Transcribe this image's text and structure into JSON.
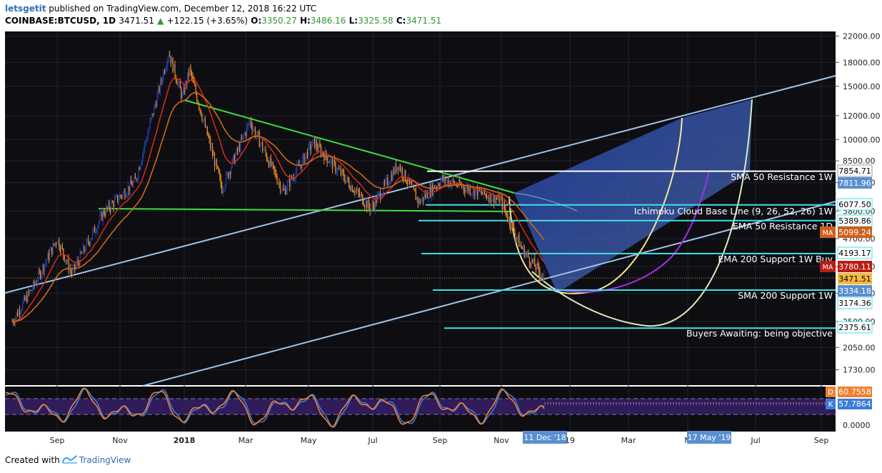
{
  "header": {
    "user": "letsgetit",
    "published_text": "published on TradingView.com, December 12, 2018 16:22 UTC",
    "symbol": "COINBASE:BTCUSD, 1D",
    "last": "3471.51",
    "change_arrow": "▲",
    "change": "+122.15 (+3.65%)",
    "o_label": "O:",
    "o_value": "3350.27",
    "h_label": "H:",
    "h_value": "3486.16",
    "l_label": "L:",
    "l_value": "3325.58",
    "c_label": "C:",
    "c_value": "3471.51"
  },
  "footer": {
    "created_with": "Created with",
    "brand": "TradingView",
    "logo_icon": "tradingview-logo-icon"
  },
  "colors": {
    "candle_up": "#1e3fa8",
    "candle_down": "#f08c1e",
    "resistance_green": "#3de03d",
    "channel_blue": "#9fc3ea",
    "level_cyan": "#3fe0e8",
    "white_level": "#ffffff",
    "arc_yellow": "#f5e79a",
    "arc_purple": "#a22ee8",
    "arc_pale": "#d9ecc0",
    "stoch_d": "#f08030",
    "stoch_k": "#3b7dd8",
    "ema_red": "#cc2a1a",
    "ema_orange": "#cc6a1a"
  },
  "chart_data": {
    "type": "candlestick",
    "symbol": "COINBASE:BTCUSD",
    "interval": "1D",
    "y_scale": "log",
    "y_axis_ticks": [
      "22000.00",
      "18000.00",
      "15000.00",
      "12000.00",
      "10000.00",
      "8500.00",
      "7200.00",
      "5800.00",
      "4700.00",
      "3800.00",
      "3100.00",
      "2500.00",
      "2050.00",
      "1730.00"
    ],
    "x_axis_ticks": [
      "Sep",
      "Nov",
      "2018",
      "Mar",
      "May",
      "Jul",
      "Sep",
      "Nov",
      "19",
      "Mar",
      "M",
      "Jul",
      "Sep"
    ],
    "x_axis_date_badges": [
      "11 Dec '18",
      "17 May '19"
    ],
    "price_markers": [
      {
        "value": "7854.71",
        "bg": "#ffffff",
        "fg": "#000000",
        "border": "#999999"
      },
      {
        "value": "7811.96",
        "bg": "#5a8fd0",
        "fg": "#ffffff"
      },
      {
        "value": "6077.50",
        "bg": "#ffffff",
        "fg": "#000000",
        "border": "#3fe0e8"
      },
      {
        "value": "5389.86",
        "bg": "#ffffff",
        "fg": "#000000",
        "border": "#3fe0e8"
      },
      {
        "value": "5099.24",
        "bg": "#d15f1a",
        "fg": "#ffffff",
        "tag": "MA"
      },
      {
        "value": "4193.17",
        "bg": "#ffffff",
        "fg": "#000000",
        "border": "#3fe0e8"
      },
      {
        "value": "3780.11",
        "bg": "#b81e14",
        "fg": "#ffffff",
        "tag": "MA"
      },
      {
        "value": "3471.51",
        "bg": "#f5b942",
        "fg": "#000000"
      },
      {
        "value": "3334.18",
        "bg": "#5a8fd0",
        "fg": "#ffffff"
      },
      {
        "value": "3174.36",
        "bg": "#ffffff",
        "fg": "#000000",
        "border": "#3fe0e8"
      },
      {
        "value": "2375.61",
        "bg": "#ffffff",
        "fg": "#000000",
        "border": "#3fe0e8"
      }
    ],
    "annotations": [
      "SMA 50 Resistance 1W",
      "Ichimoku Cloud Base Line (9, 26, 52, 26) 1W",
      "EMA 50 Resistance 1D",
      "EMA 200 Support 1W Buy",
      "SMA 200 Support 1W",
      "Buyers Awaiting: being objective"
    ],
    "horizontal_levels": [
      7854.71,
      6077.5,
      5389.86,
      4193.17,
      3174.36,
      2375.61
    ],
    "approx_close_path": [
      {
        "date": "2017-07-20",
        "close": 2500
      },
      {
        "date": "2017-08-10",
        "close": 3300
      },
      {
        "date": "2017-09-01",
        "close": 4700
      },
      {
        "date": "2017-09-15",
        "close": 3600
      },
      {
        "date": "2017-10-15",
        "close": 5700
      },
      {
        "date": "2017-11-15",
        "close": 7300
      },
      {
        "date": "2017-12-17",
        "close": 19500
      },
      {
        "date": "2017-12-30",
        "close": 13800
      },
      {
        "date": "2018-01-06",
        "close": 17000
      },
      {
        "date": "2018-02-06",
        "close": 6900
      },
      {
        "date": "2018-03-05",
        "close": 11500
      },
      {
        "date": "2018-04-06",
        "close": 6700
      },
      {
        "date": "2018-05-05",
        "close": 9800
      },
      {
        "date": "2018-06-29",
        "close": 5900
      },
      {
        "date": "2018-07-25",
        "close": 8300
      },
      {
        "date": "2018-08-14",
        "close": 6200
      },
      {
        "date": "2018-09-05",
        "close": 7400
      },
      {
        "date": "2018-10-31",
        "close": 6300
      },
      {
        "date": "2018-11-20",
        "close": 4400
      },
      {
        "date": "2018-12-12",
        "close": 3471.51
      }
    ],
    "stochastic": {
      "d_value": "60.7558",
      "d_label": "D",
      "k_value": "57.7864",
      "k_label": "K",
      "axis_tick": "0.0000"
    }
  }
}
